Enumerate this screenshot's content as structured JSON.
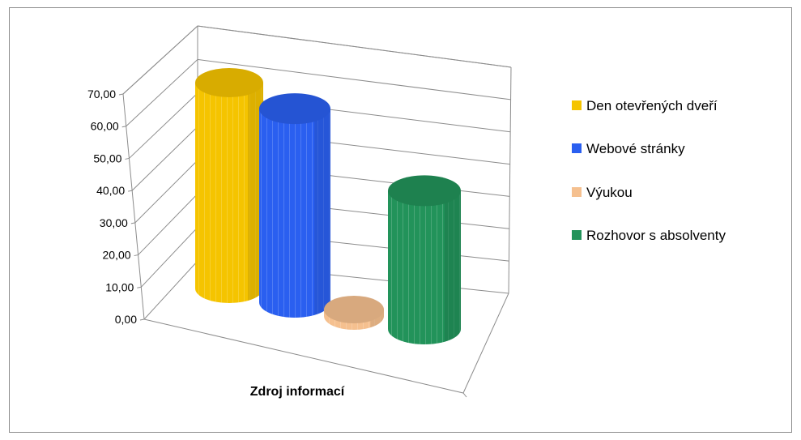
{
  "chart_data": {
    "type": "bar",
    "style": "3d-cylinder",
    "xlabel": "Zdroj informací",
    "ylim": [
      0,
      70
    ],
    "y_ticks": [
      "0,00",
      "10,00",
      "20,00",
      "30,00",
      "40,00",
      "50,00",
      "60,00",
      "70,00"
    ],
    "grid": true,
    "legend_position": "right",
    "series": [
      {
        "name": "Den otevřených dveří",
        "value": 67,
        "color": "#f5c400"
      },
      {
        "name": "Webové stránky",
        "value": 63,
        "color": "#2a5ff0"
      },
      {
        "name": "Výukou",
        "value": 1,
        "color": "#f5c08f"
      },
      {
        "name": "Rozhovor s absolventy",
        "value": 45,
        "color": "#22935a"
      }
    ]
  }
}
